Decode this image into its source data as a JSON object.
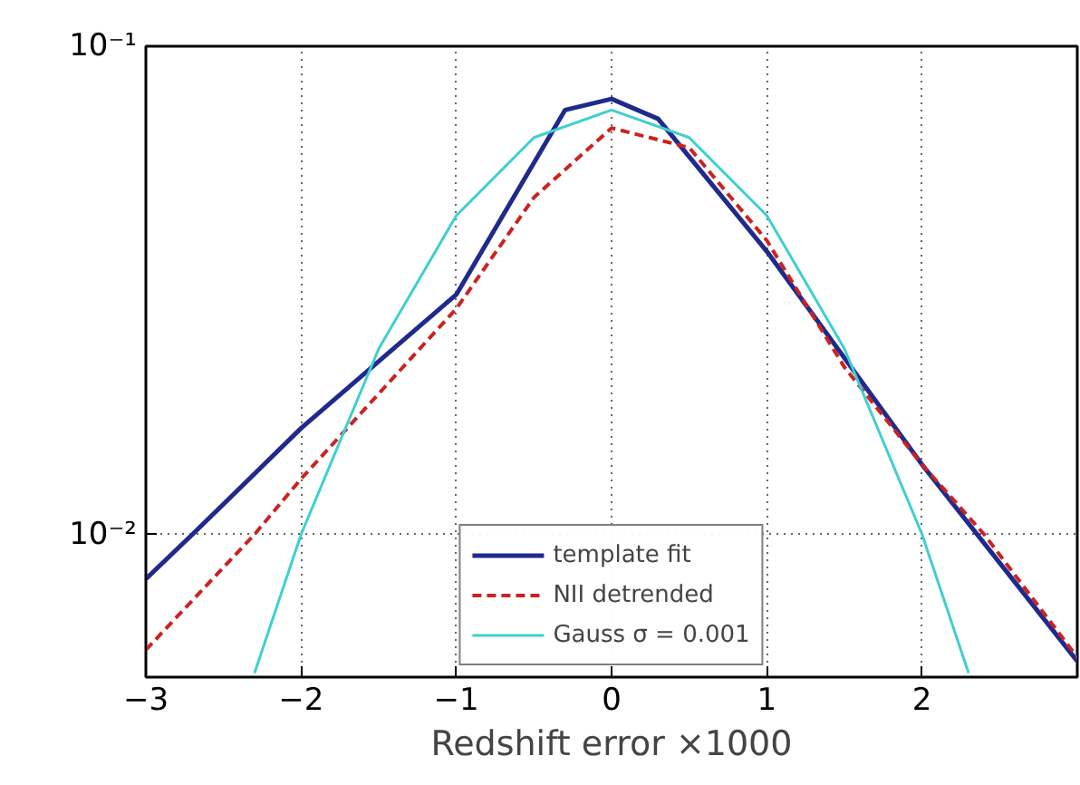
{
  "chart_data": {
    "type": "line",
    "xlabel": "Redshift error ×1000",
    "xlim": [
      -3,
      3
    ],
    "xticks": [
      {
        "value": -3,
        "label": "−3"
      },
      {
        "value": -2,
        "label": "−2"
      },
      {
        "value": -1,
        "label": "−1"
      },
      0,
      1,
      2
    ],
    "ylim": [
      0.0051,
      0.1
    ],
    "yticks": [
      {
        "value": 0.01,
        "label": "10⁻²"
      },
      {
        "value": 0.1,
        "label": "10⁻¹"
      }
    ],
    "log": "y",
    "grid": true,
    "legend": "bottom",
    "marker": "none",
    "series": [
      {
        "name": "template fit",
        "color": "#1f2a8c",
        "line_style": "solid",
        "x": [
          -3,
          -2.7,
          -2,
          -1,
          -0.3,
          0,
          0.3,
          1,
          2,
          3
        ],
        "values": [
          0.0081,
          0.01,
          0.0165,
          0.031,
          0.074,
          0.078,
          0.071,
          0.038,
          0.0139,
          0.0055
        ]
      },
      {
        "name": "NII detrended",
        "color": "#cc2222",
        "line_style": "dashed",
        "x": [
          -3,
          -2.3,
          -2,
          -1,
          -0.5,
          0,
          0.5,
          1,
          1.5,
          2,
          2.4,
          3
        ],
        "values": [
          0.0058,
          0.01,
          0.013,
          0.029,
          0.049,
          0.068,
          0.062,
          0.04,
          0.022,
          0.0139,
          0.01,
          0.0056
        ]
      },
      {
        "name": "Gauss σ = 0.001",
        "color": "#3fcfd0",
        "line_style": "solid",
        "x": [
          -2.3,
          -2,
          -1.5,
          -1,
          -0.5,
          0,
          0.5,
          1,
          1.5,
          2,
          2.3
        ],
        "values": [
          0.0052,
          0.01,
          0.024,
          0.045,
          0.065,
          0.074,
          0.065,
          0.045,
          0.024,
          0.01,
          0.0052
        ]
      }
    ]
  }
}
